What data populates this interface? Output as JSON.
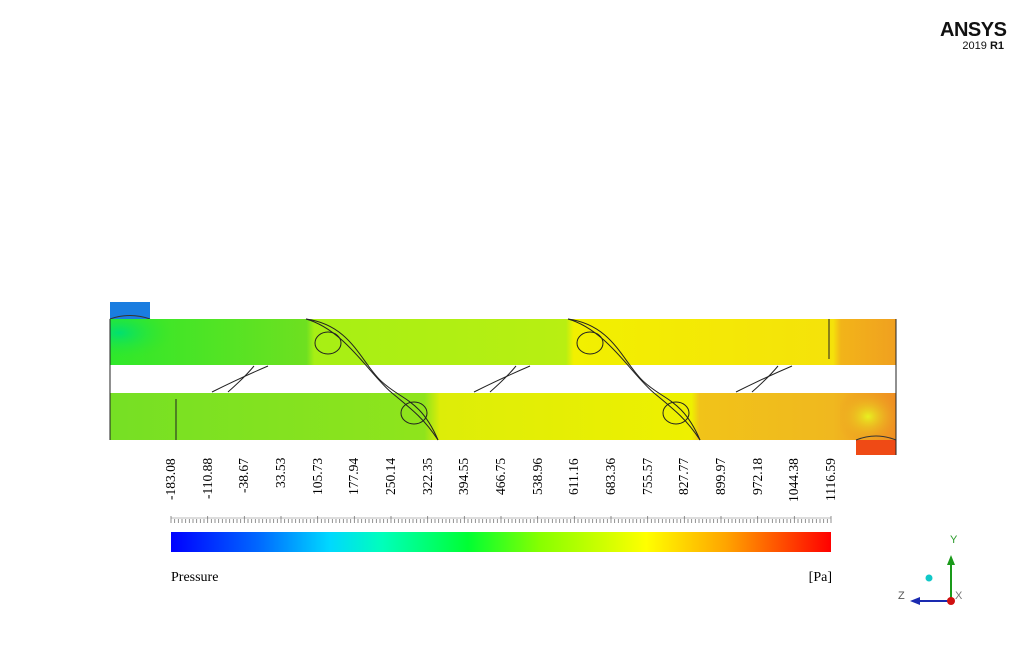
{
  "branding": {
    "name": "ANSYS",
    "version": "2019",
    "release": "R1"
  },
  "legend": {
    "variable": "Pressure",
    "unit": "[Pa]",
    "ticks": [
      "-183.08",
      "-110.88",
      "-38.67",
      "33.53",
      "105.73",
      "177.94",
      "250.14",
      "322.35",
      "394.55",
      "466.75",
      "538.96",
      "611.16",
      "683.36",
      "755.57",
      "827.77",
      "899.97",
      "972.18",
      "1044.38",
      "1116.59"
    ],
    "colormap": [
      "#0000ff",
      "#0066ff",
      "#00ccff",
      "#00ffcc",
      "#00ff66",
      "#33ff00",
      "#99ff00",
      "#ccff00",
      "#ffff00",
      "#ffcc00",
      "#ff9900",
      "#ff6600",
      "#ff3300",
      "#ff0000"
    ]
  },
  "axes": {
    "y_label": "Y",
    "z_label": "Z",
    "x_label": "X"
  }
}
